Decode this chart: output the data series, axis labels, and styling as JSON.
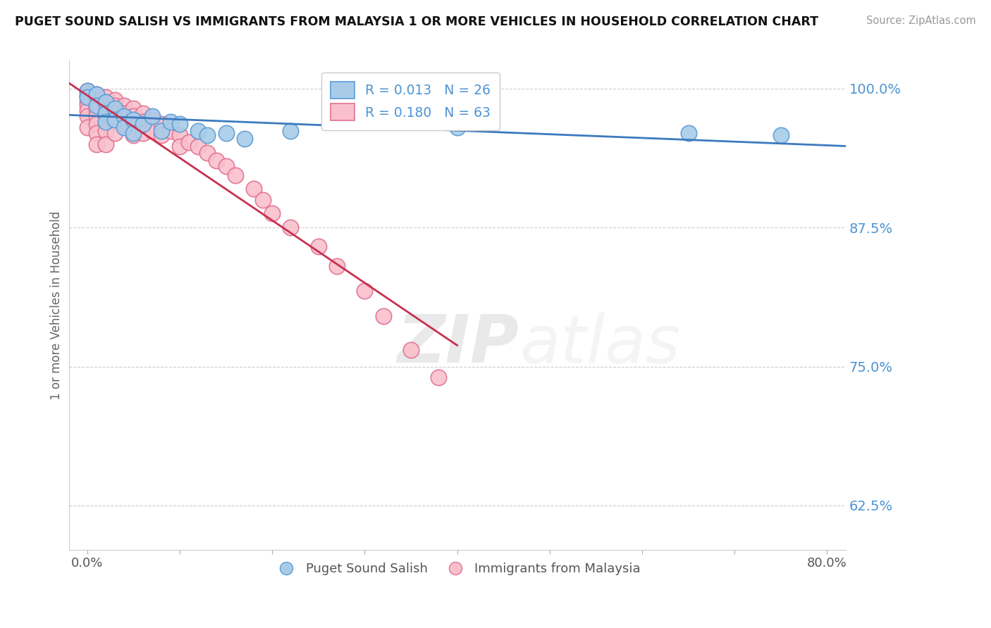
{
  "title": "PUGET SOUND SALISH VS IMMIGRANTS FROM MALAYSIA 1 OR MORE VEHICLES IN HOUSEHOLD CORRELATION CHART",
  "source": "Source: ZipAtlas.com",
  "ylabel": "1 or more Vehicles in Household",
  "xlim": [
    -0.002,
    0.082
  ],
  "ylim": [
    0.585,
    1.025
  ],
  "yticks": [
    0.625,
    0.75,
    0.875,
    1.0
  ],
  "ytick_labels": [
    "62.5%",
    "75.0%",
    "87.5%",
    "100.0%"
  ],
  "xticks": [
    0.0,
    0.01,
    0.02,
    0.03,
    0.04,
    0.05,
    0.06,
    0.07,
    0.08
  ],
  "xtick_labels": [
    "0.0%",
    "",
    "",
    "",
    "",
    "",
    "",
    "",
    "80.0%"
  ],
  "blue_color": "#a8cce8",
  "pink_color": "#f9c0cc",
  "blue_edge": "#5b9bd5",
  "pink_edge": "#e07090",
  "trend_blue": "#3d7abf",
  "trend_pink": "#c83050",
  "legend_blue_R": "R = 0.013",
  "legend_blue_N": "N = 26",
  "legend_pink_R": "R = 0.180",
  "legend_pink_N": "N = 63",
  "watermark_zip": "ZIP",
  "watermark_atlas": "atlas",
  "background_color": "#ffffff",
  "blue_scatter_x": [
    0.0,
    0.0,
    0.001,
    0.001,
    0.002,
    0.002,
    0.002,
    0.003,
    0.003,
    0.004,
    0.004,
    0.005,
    0.005,
    0.006,
    0.007,
    0.008,
    0.009,
    0.01,
    0.012,
    0.013,
    0.015,
    0.017,
    0.022,
    0.04,
    0.065,
    0.075
  ],
  "blue_scatter_y": [
    0.998,
    0.992,
    0.995,
    0.985,
    0.988,
    0.978,
    0.97,
    0.982,
    0.972,
    0.975,
    0.965,
    0.972,
    0.96,
    0.968,
    0.975,
    0.962,
    0.97,
    0.968,
    0.962,
    0.958,
    0.96,
    0.955,
    0.962,
    0.965,
    0.96,
    0.958
  ],
  "pink_scatter_x": [
    0.0,
    0.0,
    0.0,
    0.0,
    0.0,
    0.0,
    0.0,
    0.0,
    0.001,
    0.001,
    0.001,
    0.001,
    0.001,
    0.001,
    0.001,
    0.001,
    0.001,
    0.002,
    0.002,
    0.002,
    0.002,
    0.002,
    0.002,
    0.002,
    0.002,
    0.003,
    0.003,
    0.003,
    0.003,
    0.003,
    0.004,
    0.004,
    0.004,
    0.005,
    0.005,
    0.005,
    0.005,
    0.006,
    0.006,
    0.006,
    0.007,
    0.007,
    0.008,
    0.008,
    0.009,
    0.01,
    0.01,
    0.011,
    0.012,
    0.013,
    0.014,
    0.015,
    0.016,
    0.018,
    0.019,
    0.02,
    0.022,
    0.025,
    0.027,
    0.03,
    0.032,
    0.035,
    0.038
  ],
  "pink_scatter_y": [
    0.998,
    0.995,
    0.992,
    0.988,
    0.985,
    0.98,
    0.975,
    0.965,
    0.995,
    0.992,
    0.988,
    0.985,
    0.98,
    0.975,
    0.968,
    0.96,
    0.95,
    0.992,
    0.988,
    0.985,
    0.98,
    0.975,
    0.97,
    0.962,
    0.95,
    0.99,
    0.985,
    0.978,
    0.97,
    0.96,
    0.985,
    0.978,
    0.968,
    0.982,
    0.975,
    0.968,
    0.958,
    0.978,
    0.97,
    0.96,
    0.972,
    0.962,
    0.968,
    0.958,
    0.962,
    0.958,
    0.948,
    0.952,
    0.948,
    0.942,
    0.935,
    0.93,
    0.922,
    0.91,
    0.9,
    0.888,
    0.875,
    0.858,
    0.84,
    0.818,
    0.795,
    0.765,
    0.74
  ]
}
